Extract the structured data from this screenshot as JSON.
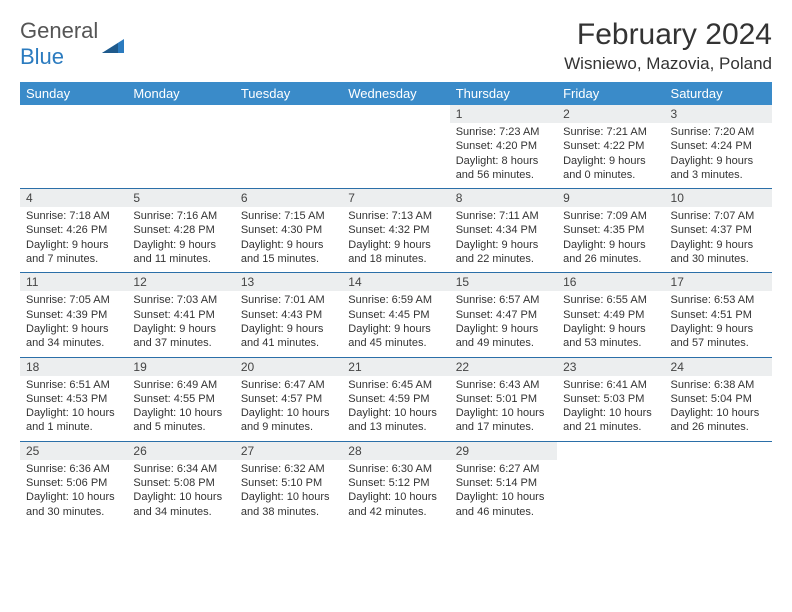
{
  "logo": {
    "text1": "General",
    "text2": "Blue",
    "icon_color": "#2b7bbf"
  },
  "title": "February 2024",
  "location": "Wisniewo, Mazovia, Poland",
  "header_bg": "#3a8bc9",
  "daynum_bg": "#eceeef",
  "border_color": "#2b6fa8",
  "day_headers": [
    "Sunday",
    "Monday",
    "Tuesday",
    "Wednesday",
    "Thursday",
    "Friday",
    "Saturday"
  ],
  "weeks": [
    {
      "nums": [
        "",
        "",
        "",
        "",
        "1",
        "2",
        "3"
      ],
      "details": [
        "",
        "",
        "",
        "",
        "Sunrise: 7:23 AM\nSunset: 4:20 PM\nDaylight: 8 hours and 56 minutes.",
        "Sunrise: 7:21 AM\nSunset: 4:22 PM\nDaylight: 9 hours and 0 minutes.",
        "Sunrise: 7:20 AM\nSunset: 4:24 PM\nDaylight: 9 hours and 3 minutes."
      ]
    },
    {
      "nums": [
        "4",
        "5",
        "6",
        "7",
        "8",
        "9",
        "10"
      ],
      "details": [
        "Sunrise: 7:18 AM\nSunset: 4:26 PM\nDaylight: 9 hours and 7 minutes.",
        "Sunrise: 7:16 AM\nSunset: 4:28 PM\nDaylight: 9 hours and 11 minutes.",
        "Sunrise: 7:15 AM\nSunset: 4:30 PM\nDaylight: 9 hours and 15 minutes.",
        "Sunrise: 7:13 AM\nSunset: 4:32 PM\nDaylight: 9 hours and 18 minutes.",
        "Sunrise: 7:11 AM\nSunset: 4:34 PM\nDaylight: 9 hours and 22 minutes.",
        "Sunrise: 7:09 AM\nSunset: 4:35 PM\nDaylight: 9 hours and 26 minutes.",
        "Sunrise: 7:07 AM\nSunset: 4:37 PM\nDaylight: 9 hours and 30 minutes."
      ]
    },
    {
      "nums": [
        "11",
        "12",
        "13",
        "14",
        "15",
        "16",
        "17"
      ],
      "details": [
        "Sunrise: 7:05 AM\nSunset: 4:39 PM\nDaylight: 9 hours and 34 minutes.",
        "Sunrise: 7:03 AM\nSunset: 4:41 PM\nDaylight: 9 hours and 37 minutes.",
        "Sunrise: 7:01 AM\nSunset: 4:43 PM\nDaylight: 9 hours and 41 minutes.",
        "Sunrise: 6:59 AM\nSunset: 4:45 PM\nDaylight: 9 hours and 45 minutes.",
        "Sunrise: 6:57 AM\nSunset: 4:47 PM\nDaylight: 9 hours and 49 minutes.",
        "Sunrise: 6:55 AM\nSunset: 4:49 PM\nDaylight: 9 hours and 53 minutes.",
        "Sunrise: 6:53 AM\nSunset: 4:51 PM\nDaylight: 9 hours and 57 minutes."
      ]
    },
    {
      "nums": [
        "18",
        "19",
        "20",
        "21",
        "22",
        "23",
        "24"
      ],
      "details": [
        "Sunrise: 6:51 AM\nSunset: 4:53 PM\nDaylight: 10 hours and 1 minute.",
        "Sunrise: 6:49 AM\nSunset: 4:55 PM\nDaylight: 10 hours and 5 minutes.",
        "Sunrise: 6:47 AM\nSunset: 4:57 PM\nDaylight: 10 hours and 9 minutes.",
        "Sunrise: 6:45 AM\nSunset: 4:59 PM\nDaylight: 10 hours and 13 minutes.",
        "Sunrise: 6:43 AM\nSunset: 5:01 PM\nDaylight: 10 hours and 17 minutes.",
        "Sunrise: 6:41 AM\nSunset: 5:03 PM\nDaylight: 10 hours and 21 minutes.",
        "Sunrise: 6:38 AM\nSunset: 5:04 PM\nDaylight: 10 hours and 26 minutes."
      ]
    },
    {
      "nums": [
        "25",
        "26",
        "27",
        "28",
        "29",
        "",
        ""
      ],
      "details": [
        "Sunrise: 6:36 AM\nSunset: 5:06 PM\nDaylight: 10 hours and 30 minutes.",
        "Sunrise: 6:34 AM\nSunset: 5:08 PM\nDaylight: 10 hours and 34 minutes.",
        "Sunrise: 6:32 AM\nSunset: 5:10 PM\nDaylight: 10 hours and 38 minutes.",
        "Sunrise: 6:30 AM\nSunset: 5:12 PM\nDaylight: 10 hours and 42 minutes.",
        "Sunrise: 6:27 AM\nSunset: 5:14 PM\nDaylight: 10 hours and 46 minutes.",
        "",
        ""
      ]
    }
  ]
}
